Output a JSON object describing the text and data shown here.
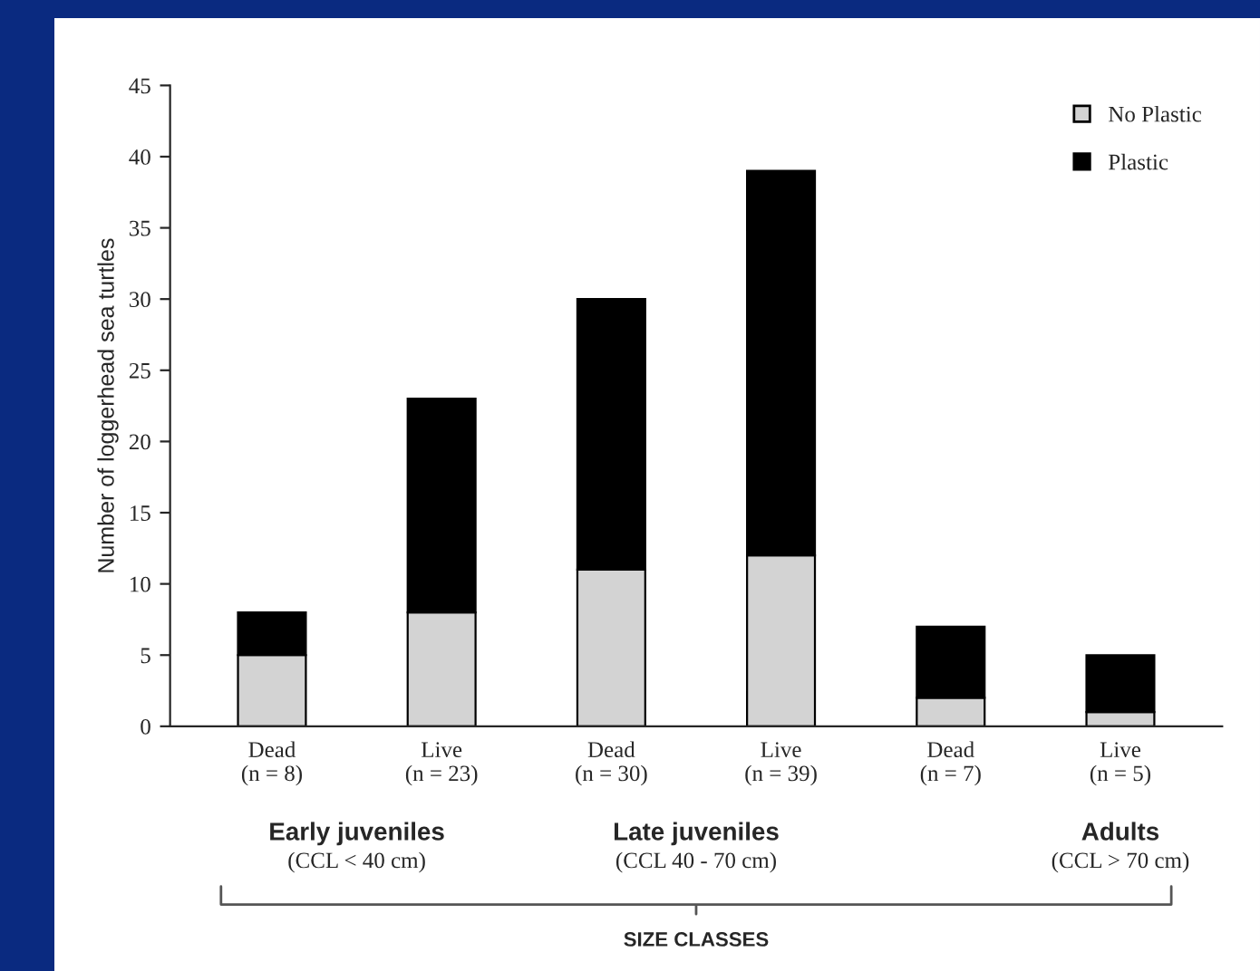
{
  "chart_data": {
    "type": "bar",
    "stacked": true,
    "ylabel": "Number of loggerhead sea turtles",
    "categories": [
      "Dead\n(n = 8)",
      "Live\n(n = 23)",
      "Dead\n(n = 30)",
      "Live\n(n = 39)",
      "Dead\n(n = 7)",
      "Live\n(n = 5)"
    ],
    "series": [
      {
        "name": "No Plastic",
        "color": "#d3d3d3",
        "values": [
          5,
          8,
          11,
          12,
          2,
          1
        ]
      },
      {
        "name": "Plastic",
        "color": "#000000",
        "values": [
          3,
          15,
          19,
          27,
          5,
          4
        ]
      }
    ],
    "ylim": [
      0,
      45
    ],
    "yticks": [
      0,
      5,
      10,
      15,
      20,
      25,
      30,
      35,
      40,
      45
    ],
    "grid": false,
    "legend": "top right",
    "annotations": [
      "Early juveniles",
      "(CCL < 40 cm)",
      "Late juveniles",
      "(CCL 40 - 70 cm)",
      "Adults",
      "(CCL > 70 cm)",
      "SIZE CLASSES"
    ]
  }
}
